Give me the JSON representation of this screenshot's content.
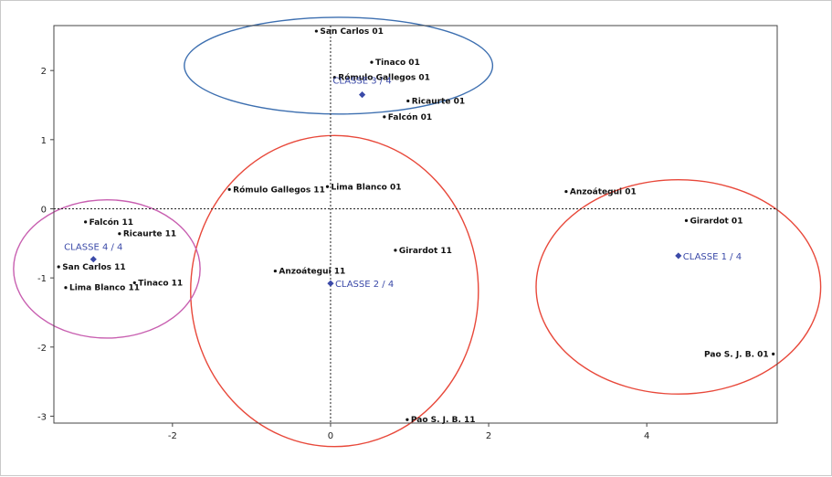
{
  "chart_data": {
    "type": "scatter",
    "title": "",
    "xlabel": "",
    "ylabel": "",
    "xlim": [
      -3.5,
      5.65
    ],
    "ylim": [
      -3.1,
      2.65
    ],
    "x_ticks": [
      -2,
      0,
      2,
      4
    ],
    "y_ticks": [
      -3,
      -2,
      -1,
      0,
      1,
      2
    ],
    "grid": false,
    "origin_lines": true,
    "points": [
      {
        "label": "San Carlos 01",
        "x": -0.18,
        "y": 2.57
      },
      {
        "label": "Tinaco 01",
        "x": 0.52,
        "y": 2.12
      },
      {
        "label": "Rómulo Gallegos 01",
        "x": 0.05,
        "y": 1.9
      },
      {
        "label": "Ricaurte 01",
        "x": 0.98,
        "y": 1.56
      },
      {
        "label": "Falcón 01",
        "x": 0.68,
        "y": 1.33
      },
      {
        "label": "Rómulo Gallegos 11",
        "x": -1.28,
        "y": 0.28
      },
      {
        "label": "Lima Blanco 01",
        "x": -0.04,
        "y": 0.32
      },
      {
        "label": "Anzoátegui 01",
        "x": 2.98,
        "y": 0.25
      },
      {
        "label": "Girardot 01",
        "x": 4.5,
        "y": -0.17
      },
      {
        "label": "Girardot 11",
        "x": 0.82,
        "y": -0.6
      },
      {
        "label": "Anzoátegui 11",
        "x": -0.7,
        "y": -0.9
      },
      {
        "label": "Falcón 11",
        "x": -3.1,
        "y": -0.19
      },
      {
        "label": "Ricaurte 11",
        "x": -2.67,
        "y": -0.36
      },
      {
        "label": "San Carlos 11",
        "x": -3.44,
        "y": -0.84
      },
      {
        "label": "Tinaco 11",
        "x": -2.48,
        "y": -1.07
      },
      {
        "label": "Lima Blanco 11",
        "x": -3.35,
        "y": -1.14
      },
      {
        "label": "Pao S. J. B. 01",
        "x": 5.6,
        "y": -2.1
      },
      {
        "label": "Pao S. J. B. 11",
        "x": 0.97,
        "y": -3.05
      }
    ],
    "centroids": [
      {
        "label": "CLASSE  1 / 4",
        "x": 4.4,
        "y": -0.68
      },
      {
        "label": "CLASSE  2 / 4",
        "x": 0.0,
        "y": -1.08
      },
      {
        "label": "CLASSE  3 / 4",
        "x": 0.4,
        "y": 1.65
      },
      {
        "label": "CLASSE  4 / 4",
        "x": -3.0,
        "y": -0.73
      }
    ],
    "clusters": [
      {
        "class": "CLASSE  1 / 4",
        "color": "#e8483a",
        "cx": 4.4,
        "cy": -1.13,
        "rx": 1.8,
        "ry": 1.55
      },
      {
        "class": "CLASSE  2 / 4",
        "color": "#e8483a",
        "cx": 0.05,
        "cy": -1.19,
        "rx": 1.82,
        "ry": 2.25
      },
      {
        "class": "CLASSE  3 / 4",
        "color": "#3d6fb0",
        "cx": 0.1,
        "cy": 2.07,
        "rx": 1.95,
        "ry": 0.7
      },
      {
        "class": "CLASSE  4 / 4",
        "color": "#c85fb0",
        "cx": -2.83,
        "cy": -0.87,
        "rx": 1.18,
        "ry": 1.0
      }
    ],
    "point_color": "#111111",
    "centroid_color": "#3b4aa8"
  }
}
